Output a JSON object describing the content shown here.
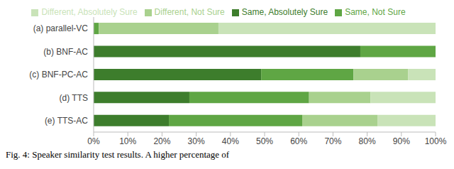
{
  "chart_data": {
    "type": "bar",
    "orientation": "horizontal",
    "stacked": true,
    "legend": "top",
    "grid": false,
    "caption": "Fig. 4: Speaker similarity test results. A higher percentage of",
    "categories": [
      "(a) parallel-VC",
      "(b) BNF-AC",
      "(c) BNF-PC-AC",
      "(d) TTS",
      "(e) TTS-AC"
    ],
    "series": [
      {
        "name": "Same, Absolutely Sure",
        "color": "#3d7d2c",
        "values": [
          0,
          78,
          49,
          28,
          22
        ]
      },
      {
        "name": "Same, Not Sure",
        "color": "#5fa644",
        "values": [
          1.5,
          22,
          27,
          35,
          39
        ]
      },
      {
        "name": "Different, Not Sure",
        "color": "#a9d18e",
        "values": [
          35,
          0,
          16,
          18,
          22
        ]
      },
      {
        "name": "Different, Absolutely Sure",
        "color": "#c9e3b8",
        "values": [
          63.5,
          0,
          8,
          19,
          17
        ]
      }
    ],
    "xlim": [
      0,
      100
    ],
    "xticks": [
      {
        "value": 0,
        "label": "0%"
      },
      {
        "value": 10,
        "label": "10%"
      },
      {
        "value": 20,
        "label": "20%"
      },
      {
        "value": 30,
        "label": "30%"
      },
      {
        "value": 40,
        "label": "40%"
      },
      {
        "value": 50,
        "label": "50%"
      },
      {
        "value": 60,
        "label": "60%"
      },
      {
        "value": 70,
        "label": "70%"
      },
      {
        "value": 80,
        "label": "80%"
      },
      {
        "value": 90,
        "label": "90%"
      },
      {
        "value": 100,
        "label": "100%"
      }
    ]
  }
}
